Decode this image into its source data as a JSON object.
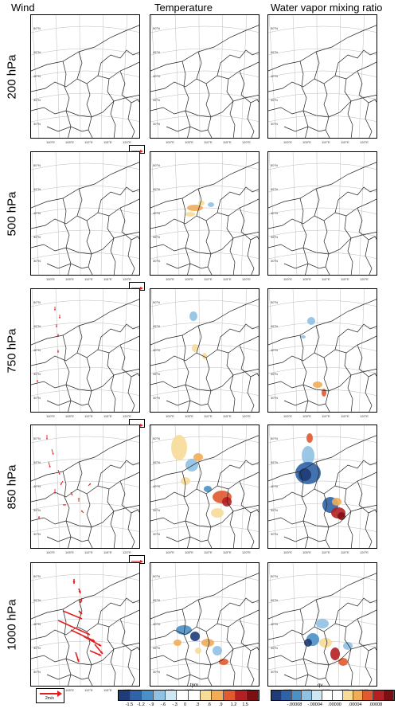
{
  "columns": [
    "Wind",
    "Temperature",
    "Water vapor mixing ratio"
  ],
  "rows": [
    "200 hPa",
    "500 hPa",
    "750 hPa",
    "850 hPa",
    "1000 hPa"
  ],
  "lat_labels": [
    "50°N",
    "45°N",
    "40°N",
    "35°N",
    "30°N"
  ],
  "lon_labels": [
    "100°E",
    "105°E",
    "110°E",
    "115°E",
    "120°E"
  ],
  "wind_ref_label": "2m/s",
  "colorbar_temperature": {
    "title": "tpm",
    "ticks": [
      "-1.5",
      "-1.2",
      "-.9",
      "-.6",
      "-.3",
      "0",
      ".3",
      ".6",
      ".9",
      "1.2",
      "1.5"
    ]
  },
  "colorbar_vapor": {
    "title": "qv",
    "ticks": [
      "-.00008",
      "-.00004",
      ".00000",
      ".00004",
      ".00008"
    ]
  },
  "colors": {
    "diverging": [
      "#1e3c78",
      "#2f63a6",
      "#4a90c6",
      "#8ec1e2",
      "#cfe6f3",
      "#ffffff",
      "#ffffff",
      "#f7dc97",
      "#f1ac58",
      "#e0592f",
      "#b32024",
      "#7d0f13"
    ],
    "wind_arrow": "#e02020"
  }
}
